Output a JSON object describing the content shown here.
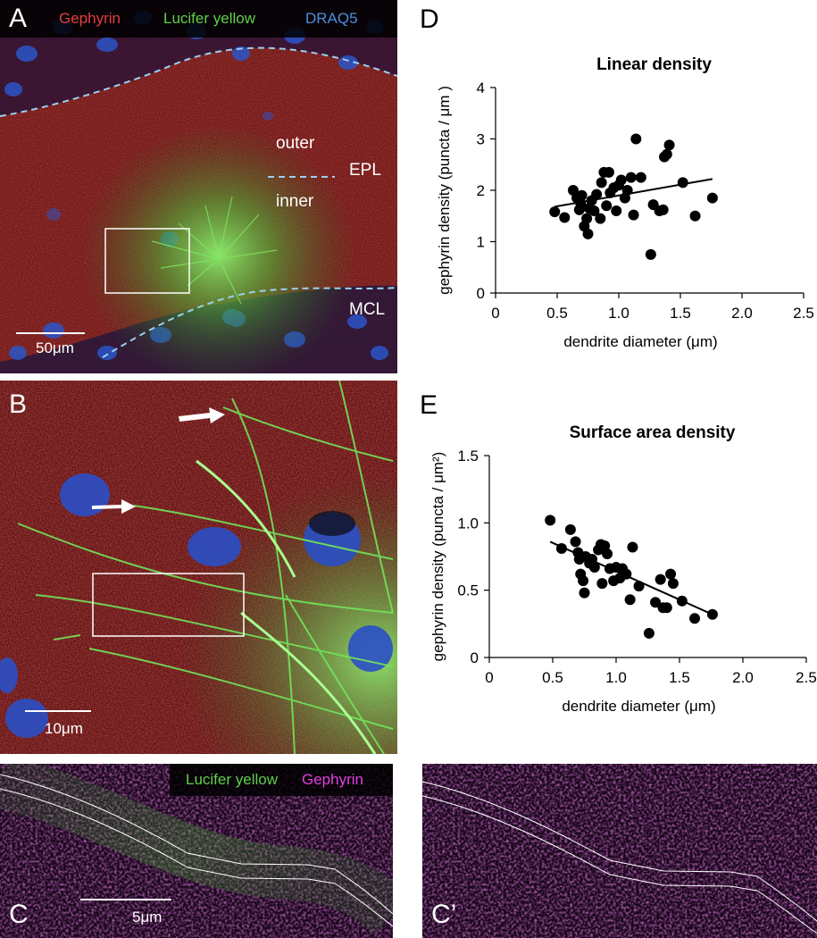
{
  "panels": {
    "A": {
      "letter": "A",
      "legend": {
        "gephyrin": "Gephyrin",
        "lucifer": "Lucifer yellow",
        "draq5": "DRAQ5"
      },
      "labels": {
        "outer": "outer",
        "epl": "EPL",
        "inner": "inner",
        "mcl": "MCL"
      },
      "scale": "50μm"
    },
    "B": {
      "letter": "B",
      "scale": "10μm"
    },
    "C": {
      "letter": "C",
      "legend": {
        "lucifer": "Lucifer yellow",
        "gephyrin": "Gephyrin"
      },
      "scale": "5μm"
    },
    "C2": {
      "letter": "C’"
    }
  },
  "colors": {
    "gephyrin": "#e0403a",
    "lucifer": "#5fcf4a",
    "draq5": "#4a8fe0",
    "magenta": "#e040e0",
    "red_tissue": "#6a1414",
    "dark": "#1a0a1a"
  },
  "chart_data": [
    {
      "panel": "D",
      "type": "scatter",
      "title": "Linear density",
      "xlabel": "dendrite diameter (μm)",
      "ylabel": "gephyrin density (puncta / μm )",
      "xlim": [
        0,
        2.5
      ],
      "ylim": [
        0,
        4
      ],
      "xticks": [
        "0",
        "0.5",
        "1.0",
        "1.5",
        "2.0",
        "2.5"
      ],
      "yticks": [
        "0",
        "1",
        "2",
        "3",
        "4"
      ],
      "points": [
        [
          0.48,
          1.58
        ],
        [
          0.56,
          1.47
        ],
        [
          0.63,
          2.0
        ],
        [
          0.66,
          1.85
        ],
        [
          0.68,
          1.62
        ],
        [
          0.69,
          1.75
        ],
        [
          0.7,
          1.9
        ],
        [
          0.72,
          1.3
        ],
        [
          0.74,
          1.45
        ],
        [
          0.75,
          1.15
        ],
        [
          0.76,
          1.65
        ],
        [
          0.78,
          1.8
        ],
        [
          0.8,
          1.6
        ],
        [
          0.82,
          1.92
        ],
        [
          0.85,
          1.45
        ],
        [
          0.86,
          2.15
        ],
        [
          0.88,
          2.35
        ],
        [
          0.9,
          1.7
        ],
        [
          0.92,
          2.35
        ],
        [
          0.93,
          1.95
        ],
        [
          0.96,
          2.05
        ],
        [
          0.98,
          1.6
        ],
        [
          1.0,
          2.1
        ],
        [
          1.02,
          2.2
        ],
        [
          1.05,
          1.85
        ],
        [
          1.07,
          2.0
        ],
        [
          1.1,
          2.25
        ],
        [
          1.12,
          1.52
        ],
        [
          1.14,
          3.0
        ],
        [
          1.18,
          2.25
        ],
        [
          1.26,
          0.75
        ],
        [
          1.28,
          1.72
        ],
        [
          1.33,
          1.6
        ],
        [
          1.36,
          1.62
        ],
        [
          1.37,
          2.65
        ],
        [
          1.39,
          2.7
        ],
        [
          1.41,
          2.88
        ],
        [
          1.52,
          2.15
        ],
        [
          1.62,
          1.5
        ],
        [
          1.76,
          1.85
        ]
      ],
      "fit": {
        "x": [
          0.48,
          1.76
        ],
        "y": [
          1.68,
          2.22
        ]
      }
    },
    {
      "panel": "E",
      "type": "scatter",
      "title": "Surface area density",
      "xlabel": "dendrite diameter (μm)",
      "ylabel": "gephyrin density (puncta / μm²)",
      "xlim": [
        0,
        2.5
      ],
      "ylim": [
        0,
        1.5
      ],
      "xticks": [
        "0",
        "0.5",
        "1.0",
        "1.5",
        "2.0",
        "2.5"
      ],
      "yticks": [
        "0",
        "0.5",
        "1.0",
        "1.5"
      ],
      "points": [
        [
          0.48,
          1.02
        ],
        [
          0.57,
          0.81
        ],
        [
          0.64,
          0.95
        ],
        [
          0.68,
          0.86
        ],
        [
          0.7,
          0.78
        ],
        [
          0.71,
          0.73
        ],
        [
          0.72,
          0.62
        ],
        [
          0.74,
          0.57
        ],
        [
          0.75,
          0.48
        ],
        [
          0.76,
          0.75
        ],
        [
          0.79,
          0.7
        ],
        [
          0.81,
          0.73
        ],
        [
          0.83,
          0.67
        ],
        [
          0.86,
          0.8
        ],
        [
          0.88,
          0.84
        ],
        [
          0.89,
          0.55
        ],
        [
          0.91,
          0.83
        ],
        [
          0.93,
          0.77
        ],
        [
          0.95,
          0.66
        ],
        [
          0.98,
          0.57
        ],
        [
          1.0,
          0.67
        ],
        [
          1.03,
          0.59
        ],
        [
          1.05,
          0.66
        ],
        [
          1.08,
          0.62
        ],
        [
          1.11,
          0.43
        ],
        [
          1.13,
          0.82
        ],
        [
          1.18,
          0.53
        ],
        [
          1.26,
          0.18
        ],
        [
          1.31,
          0.41
        ],
        [
          1.35,
          0.58
        ],
        [
          1.37,
          0.37
        ],
        [
          1.4,
          0.37
        ],
        [
          1.43,
          0.62
        ],
        [
          1.45,
          0.55
        ],
        [
          1.52,
          0.42
        ],
        [
          1.62,
          0.29
        ],
        [
          1.76,
          0.32
        ]
      ],
      "fit": {
        "x": [
          0.48,
          1.76
        ],
        "y": [
          0.86,
          0.32
        ]
      }
    }
  ]
}
